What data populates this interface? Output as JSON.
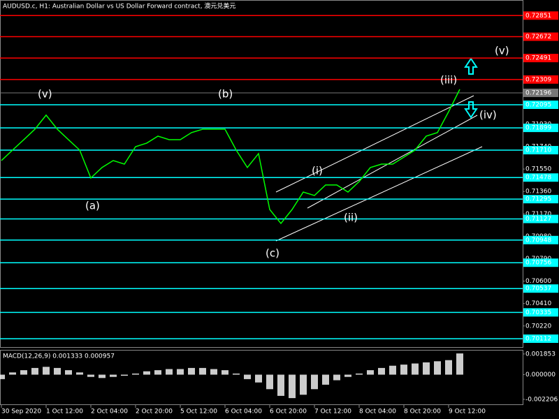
{
  "chart_data": {
    "type": "line",
    "title": "AUDUSD.c, H1:  Australian Dollar vs US Dollar Forward contract, 澳元兑美元",
    "color": "#00ff00",
    "values": [
      0.71622,
      0.71711,
      0.71799,
      0.71888,
      0.72007,
      0.71888,
      0.71799,
      0.71711,
      0.71474,
      0.71563,
      0.71622,
      0.71592,
      0.7174,
      0.7177,
      0.71829,
      0.71799,
      0.71799,
      0.71859,
      0.71888,
      0.71888,
      0.71888,
      0.71711,
      0.71563,
      0.71681,
      0.71207,
      0.71089,
      0.71207,
      0.71355,
      0.71326,
      0.71415,
      0.71415,
      0.71355,
      0.71444,
      0.71563,
      0.71592,
      0.71592,
      0.71651,
      0.71711,
      0.71829,
      0.71859,
      0.72036,
      0.72226
    ],
    "ylim": [
      0.70041,
      0.72983
    ],
    "yticks": [
      {
        "value": 0.7022,
        "label": "0.70220"
      },
      {
        "value": 0.7041,
        "label": "0.70410"
      },
      {
        "value": 0.706,
        "label": "0.70600"
      },
      {
        "value": 0.7079,
        "label": "0.70790"
      },
      {
        "value": 0.7098,
        "label": "0.70980"
      },
      {
        "value": 0.7117,
        "label": "0.71170"
      },
      {
        "value": 0.7136,
        "label": "0.71360"
      },
      {
        "value": 0.7155,
        "label": "0.71550"
      },
      {
        "value": 0.7174,
        "label": "0.71740"
      },
      {
        "value": 0.7193,
        "label": "0.71930"
      }
    ],
    "xticks": [
      "30 Sep 2020",
      "1 Oct 12:00",
      "2 Oct 04:00",
      "2 Oct 20:00",
      "5 Oct 12:00",
      "6 Oct 04:00",
      "6 Oct 20:00",
      "7 Oct 12:00",
      "8 Oct 04:00",
      "8 Oct 20:00",
      "9 Oct 12:00"
    ],
    "current_price": 0.72196,
    "levels": [
      {
        "value": 0.72851,
        "color": "#ff0000"
      },
      {
        "value": 0.72672,
        "color": "#ff0000"
      },
      {
        "value": 0.72491,
        "color": "#ff0000"
      },
      {
        "value": 0.72309,
        "color": "#ff0000"
      },
      {
        "value": 0.72095,
        "color": "#00ffff"
      },
      {
        "value": 0.71899,
        "color": "#00ffff"
      },
      {
        "value": {
          "value": 0.7171,
          "label": "0.71710"
        },
        "color": "#00ffff"
      },
      {
        "value": 0.71478,
        "color": "#00ffff"
      },
      {
        "value": 0.71295,
        "color": "#00ffff"
      },
      {
        "value": 0.71127,
        "color": "#00ffff"
      },
      {
        "value": 0.70948,
        "color": "#00ffff"
      },
      {
        "value": 0.70756,
        "color": "#00ffff"
      },
      {
        "value": 0.70537,
        "color": "#00ffff"
      },
      {
        "value": 0.70335,
        "color": "#00ffff"
      },
      {
        "value": 0.70112,
        "color": "#00ffff"
      }
    ],
    "annotations": [
      {
        "text": "(v)",
        "color": "#ffffff"
      },
      {
        "text": "(b)",
        "color": "#ffd700"
      },
      {
        "text": "(a)",
        "color": "#ffd700"
      },
      {
        "text": "(c)",
        "color": "#ffd700"
      },
      {
        "text": "(i)",
        "color": "#ffffff"
      },
      {
        "text": "(ii)",
        "color": "#ffffff"
      },
      {
        "text": "(iii)",
        "color": "#ffffff"
      },
      {
        "text": "(iv)",
        "color": "#ffffff"
      },
      {
        "text": "(v)",
        "color": "#ffffff"
      }
    ],
    "macd": {
      "title": "MACD(12,26,9) 0.001333 0.000957",
      "color": "#ffffff",
      "values": [
        -0.0004,
        0.0002,
        0.0004,
        0.0006,
        0.0007,
        0.0006,
        0.0004,
        0.0002,
        -0.0002,
        -0.0003,
        -0.0002,
        -0.0001,
        0.0001,
        0.0003,
        0.0004,
        0.0005,
        0.0005,
        0.0006,
        0.0006,
        0.0005,
        0.0004,
        0.0001,
        -0.0004,
        -0.0007,
        -0.0013,
        -0.0019,
        -0.0021,
        -0.0018,
        -0.0013,
        -0.0009,
        -0.0005,
        -0.0002,
        0.0001,
        0.0004,
        0.0006,
        0.0008,
        0.0009,
        0.001,
        0.0011,
        0.0012,
        0.0013,
        0.0019
      ],
      "ylim": [
        -0.00272,
        0.00222
      ],
      "yticks": [
        0.001853,
        {
          "value": 0,
          "label": "0.000000"
        },
        -0.002206
      ]
    }
  }
}
